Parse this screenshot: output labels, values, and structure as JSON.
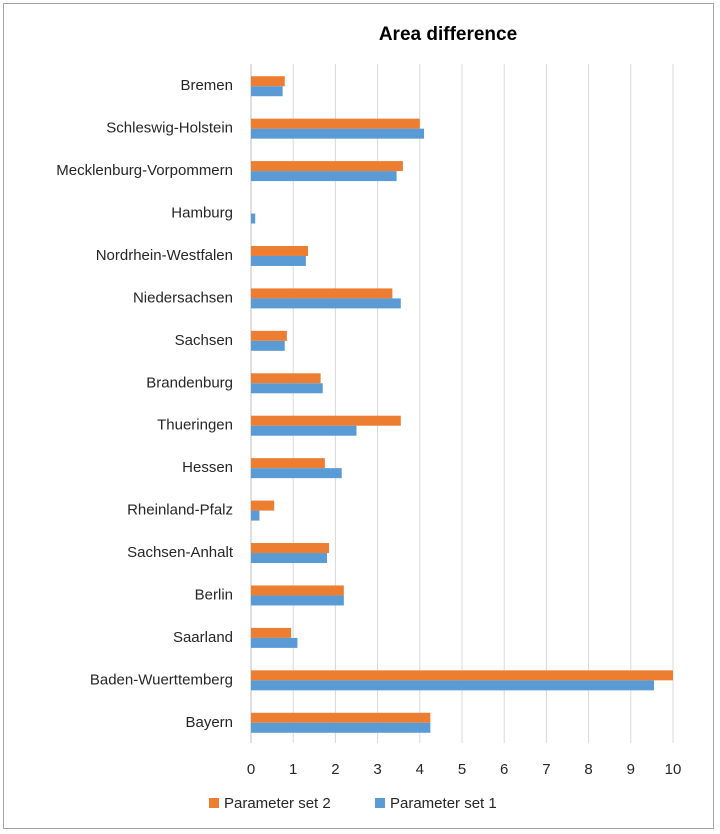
{
  "chart_data": {
    "type": "bar",
    "orientation": "horizontal",
    "title": "Area difference",
    "xlabel": "",
    "ylabel": "",
    "xlim": [
      0,
      10
    ],
    "xticks": [
      "0",
      "1",
      "2",
      "3",
      "4",
      "5",
      "6",
      "7",
      "8",
      "9",
      "10"
    ],
    "grid": "vertical",
    "legend_position": "bottom",
    "categories": [
      "Bremen",
      "Schleswig-Holstein",
      "Mecklenburg-Vorpommern",
      "Hamburg",
      "Nordrhein-Westfalen",
      "Niedersachsen",
      "Sachsen",
      "Brandenburg",
      "Thueringen",
      "Hessen",
      "Rheinland-Pfalz",
      "Sachsen-Anhalt",
      "Berlin",
      "Saarland",
      "Baden-Wuerttemberg",
      "Bayern"
    ],
    "series": [
      {
        "name": "Parameter set 2",
        "color": "#ed7d31",
        "values": [
          0.8,
          4.0,
          3.6,
          0.0,
          1.35,
          3.35,
          0.85,
          1.65,
          3.55,
          1.75,
          0.55,
          1.85,
          2.2,
          0.95,
          10.0,
          4.25
        ]
      },
      {
        "name": "Parameter set 1",
        "color": "#5b9bd5",
        "values": [
          0.75,
          4.1,
          3.45,
          0.1,
          1.3,
          3.55,
          0.8,
          1.7,
          2.5,
          2.15,
          0.2,
          1.8,
          2.2,
          1.1,
          9.55,
          4.25
        ]
      }
    ]
  }
}
